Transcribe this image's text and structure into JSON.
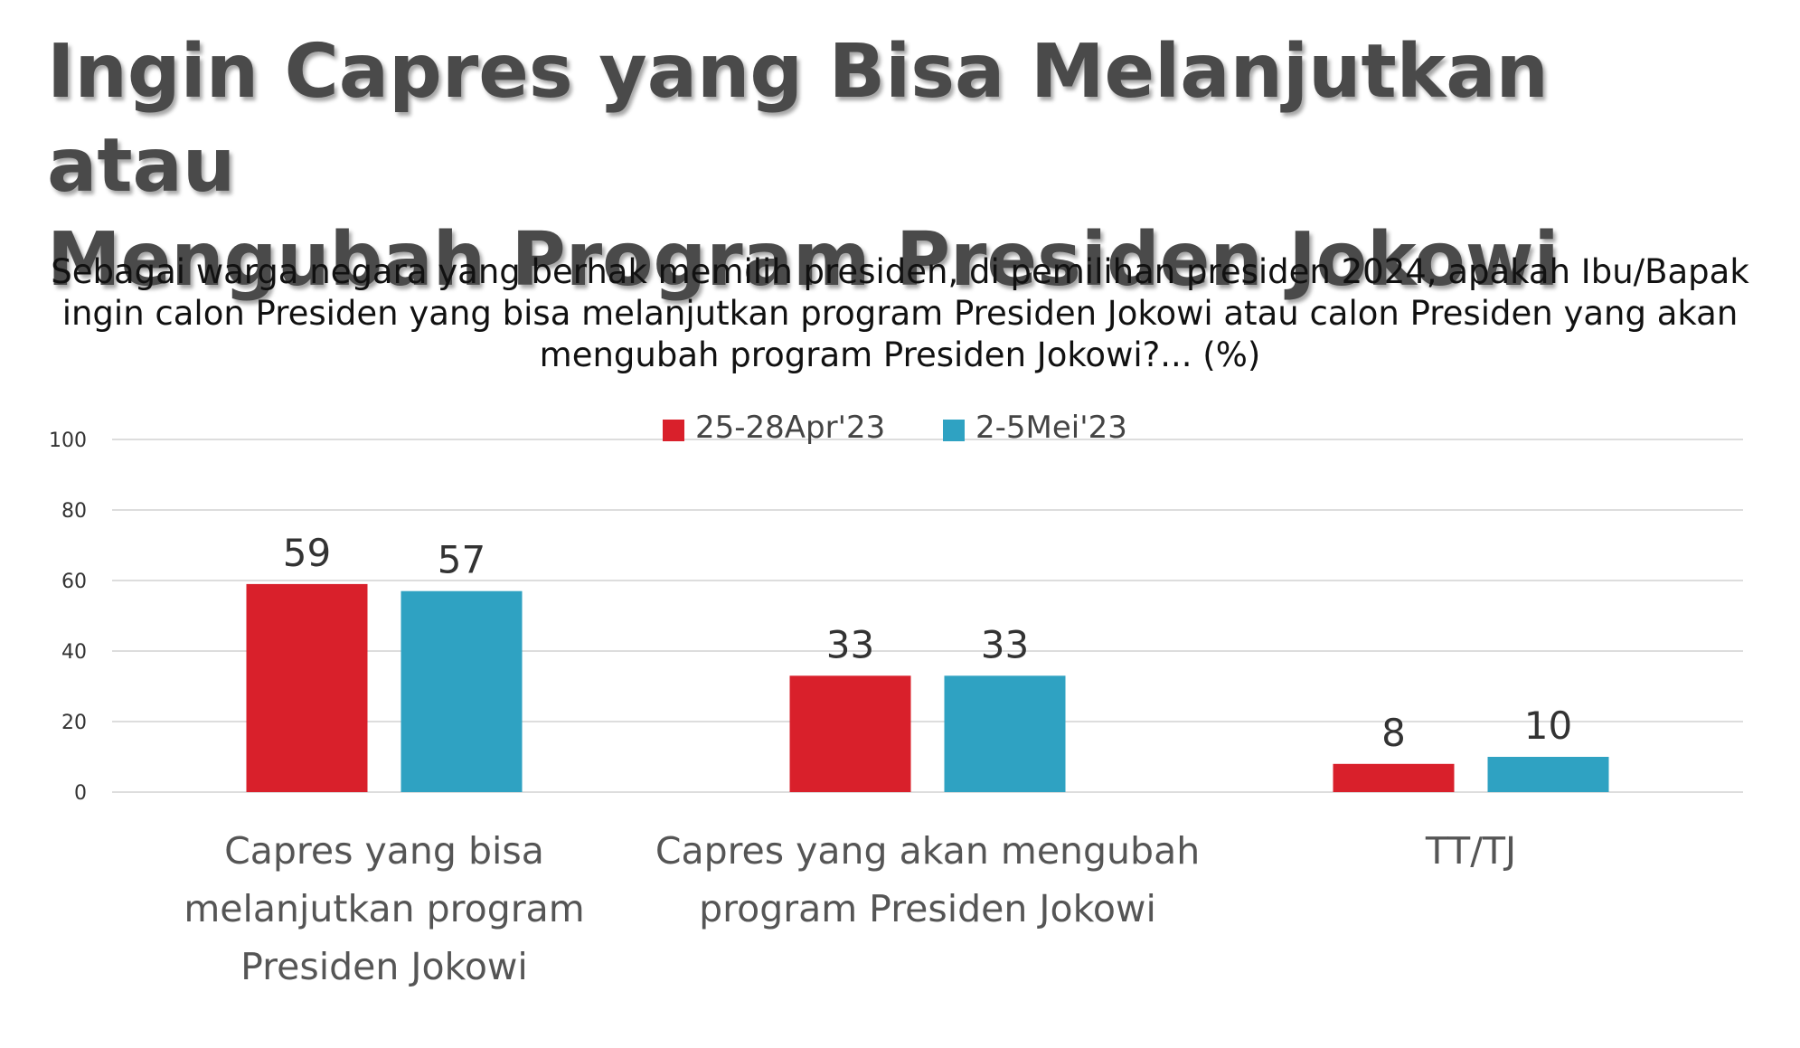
{
  "title_lines": [
    "Ingin Capres yang Bisa Melanjutkan atau",
    "Mengubah Program Presiden Jokowi"
  ],
  "subtitle_lines": [
    "Sebagai warga negara yang berhak memilih presiden, di pemilihan presiden 2024, apakah Ibu/Bapak",
    "ingin calon Presiden yang bisa melanjutkan program Presiden Jokowi atau calon Presiden yang akan",
    "mengubah program Presiden Jokowi?... (%)"
  ],
  "colors": {
    "series_1": "#d9202b",
    "series_2": "#2fa2c2",
    "grid": "#dddddd"
  },
  "chart_data": {
    "type": "bar",
    "title": "Ingin Capres yang Bisa Melanjutkan atau Mengubah Program Presiden Jokowi",
    "categories": [
      [
        "Capres yang bisa",
        "melanjutkan program",
        "Presiden Jokowi"
      ],
      [
        "Capres yang akan mengubah",
        "program Presiden Jokowi"
      ],
      [
        "TT/TJ"
      ]
    ],
    "series": [
      {
        "name": "25-28Apr'23",
        "values": [
          59,
          33,
          8
        ]
      },
      {
        "name": "2-5Mei'23",
        "values": [
          57,
          33,
          10
        ]
      }
    ],
    "ylim": [
      0,
      100
    ],
    "yticks": [
      0,
      20,
      40,
      60,
      80,
      100
    ],
    "grid": true,
    "legend": "top-center"
  }
}
